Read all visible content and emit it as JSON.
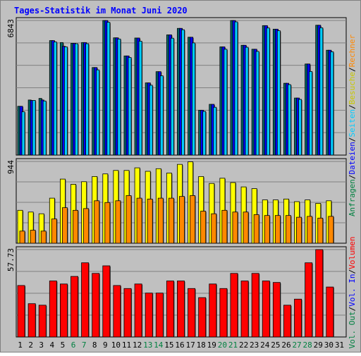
{
  "title": "Tages-Statistik im Monat Juni 2020",
  "colors": {
    "title": "#0000ff",
    "frame_bg": "#c0c0c0",
    "plot_bg": "#c0c0c0",
    "grid": "#808080",
    "anfragen": "#006666",
    "dateien": "#0000ff",
    "seiten": "#00ccff",
    "besuche": "#ffff00",
    "rechner": "#ff8800",
    "volumen": "#ff0000",
    "weekend_tick": "#008040",
    "tick": "#000000"
  },
  "right_legend": {
    "top": [
      {
        "label": "Anfragen",
        "color": "#008040"
      },
      {
        "label": "Dateien",
        "color": "#0000ff"
      },
      {
        "label": "Seiten",
        "color": "#00ccff"
      },
      {
        "label": "Besuche",
        "color": "#c8c800"
      },
      {
        "label": "Rechner",
        "color": "#ff8800"
      }
    ],
    "bottom": [
      {
        "label": "Vol. Out",
        "color": "#008040"
      },
      {
        "label": "Vol. In",
        "color": "#0000ff"
      },
      {
        "label": "Volumen",
        "color": "#ff0000"
      }
    ],
    "separator": "/"
  },
  "chart_data": [
    {
      "type": "bar",
      "panel": "top",
      "ymax_label": "6843",
      "ylim": [
        0,
        6843
      ],
      "x": [
        1,
        2,
        3,
        4,
        5,
        6,
        7,
        8,
        9,
        10,
        11,
        12,
        13,
        14,
        15,
        16,
        17,
        18,
        19,
        20,
        21,
        22,
        23,
        24,
        25,
        26,
        27,
        28,
        29,
        30
      ],
      "series": [
        {
          "name": "Anfragen",
          "values": [
            2480,
            2800,
            2880,
            5820,
            5720,
            5680,
            5720,
            4450,
            6840,
            5960,
            5040,
            5950,
            3670,
            4240,
            6110,
            6440,
            5990,
            2280,
            2580,
            5500,
            6840,
            5580,
            5380,
            6580,
            6400,
            3650,
            2900,
            4630,
            6600,
            5330
          ]
        },
        {
          "name": "Dateien",
          "values": [
            2480,
            2780,
            2800,
            5820,
            5530,
            5680,
            5720,
            4450,
            6840,
            5960,
            5040,
            5950,
            3670,
            4240,
            6110,
            6440,
            5990,
            2280,
            2580,
            5500,
            6840,
            5580,
            5380,
            6580,
            6400,
            3650,
            2900,
            4630,
            6600,
            5330
          ]
        },
        {
          "name": "Seiten",
          "values": [
            2200,
            2780,
            2750,
            5750,
            5500,
            5660,
            5660,
            4330,
            6750,
            5900,
            4960,
            5790,
            3550,
            4030,
            5940,
            6370,
            5700,
            2220,
            2430,
            5380,
            6770,
            5480,
            5270,
            6460,
            6320,
            3580,
            2830,
            4250,
            6470,
            5250
          ]
        }
      ]
    },
    {
      "type": "bar",
      "panel": "middle",
      "ymax_label": "944",
      "ylim": [
        0,
        944
      ],
      "x": [
        1,
        2,
        3,
        4,
        5,
        6,
        7,
        8,
        9,
        10,
        11,
        12,
        13,
        14,
        15,
        16,
        17,
        18,
        19,
        20,
        21,
        22,
        23,
        24,
        25,
        26,
        27,
        28,
        29,
        30
      ],
      "series": [
        {
          "name": "Besuche",
          "values": [
            380,
            360,
            340,
            520,
            740,
            680,
            710,
            770,
            800,
            840,
            840,
            870,
            830,
            860,
            810,
            910,
            940,
            770,
            690,
            750,
            700,
            650,
            630,
            500,
            500,
            510,
            480,
            500,
            460,
            490
          ]
        },
        {
          "name": "Rechner",
          "values": [
            140,
            150,
            140,
            280,
            410,
            380,
            400,
            490,
            470,
            490,
            550,
            520,
            510,
            520,
            520,
            540,
            550,
            370,
            340,
            380,
            360,
            360,
            330,
            320,
            320,
            320,
            300,
            310,
            290,
            310
          ]
        }
      ]
    },
    {
      "type": "bar",
      "panel": "bottom",
      "ymax_label": "57.73",
      "ylim": [
        0,
        57.73
      ],
      "x": [
        1,
        2,
        3,
        4,
        5,
        6,
        7,
        8,
        9,
        10,
        11,
        12,
        13,
        14,
        15,
        16,
        17,
        18,
        19,
        20,
        21,
        22,
        23,
        24,
        25,
        26,
        27,
        28,
        29,
        30
      ],
      "series": [
        {
          "name": "Volumen",
          "values": [
            34.0,
            22.0,
            21.0,
            37.0,
            35.0,
            40.0,
            49.0,
            42.0,
            47.0,
            34.0,
            32.0,
            35.0,
            29.0,
            29.0,
            37.0,
            37.0,
            32.0,
            26.0,
            35.0,
            32.0,
            42.0,
            37.0,
            42.0,
            37.0,
            36.0,
            21.0,
            25.0,
            49.0,
            57.7,
            33.0
          ]
        }
      ]
    }
  ],
  "x_ticks": [
    {
      "label": "1",
      "weekend": false
    },
    {
      "label": "2",
      "weekend": false
    },
    {
      "label": "3",
      "weekend": false
    },
    {
      "label": "4",
      "weekend": false
    },
    {
      "label": "5",
      "weekend": false
    },
    {
      "label": "6",
      "weekend": true
    },
    {
      "label": "7",
      "weekend": true
    },
    {
      "label": "8",
      "weekend": false
    },
    {
      "label": "9",
      "weekend": false
    },
    {
      "label": "10",
      "weekend": false
    },
    {
      "label": "11",
      "weekend": false
    },
    {
      "label": "12",
      "weekend": false
    },
    {
      "label": "13",
      "weekend": true
    },
    {
      "label": "14",
      "weekend": true
    },
    {
      "label": "15",
      "weekend": false
    },
    {
      "label": "16",
      "weekend": false
    },
    {
      "label": "17",
      "weekend": false
    },
    {
      "label": "18",
      "weekend": false
    },
    {
      "label": "19",
      "weekend": false
    },
    {
      "label": "20",
      "weekend": true
    },
    {
      "label": "21",
      "weekend": true
    },
    {
      "label": "22",
      "weekend": false
    },
    {
      "label": "23",
      "weekend": false
    },
    {
      "label": "24",
      "weekend": false
    },
    {
      "label": "25",
      "weekend": false
    },
    {
      "label": "26",
      "weekend": false
    },
    {
      "label": "27",
      "weekend": true
    },
    {
      "label": "28",
      "weekend": true
    },
    {
      "label": "29",
      "weekend": false
    },
    {
      "label": "30",
      "weekend": false
    },
    {
      "label": "31",
      "weekend": false
    }
  ]
}
